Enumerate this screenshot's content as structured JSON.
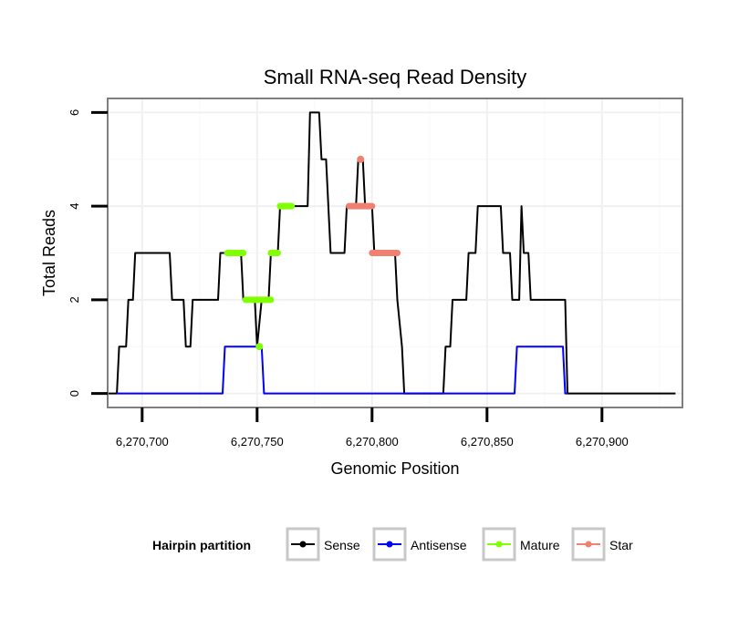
{
  "chart_data": {
    "type": "line",
    "title": "Small RNA-seq Read Density",
    "xlabel": "Genomic Position",
    "ylabel": "Total Reads",
    "xlim": [
      6270685,
      6270935
    ],
    "ylim": [
      -0.3,
      6.3
    ],
    "xticks": [
      6270700,
      6270750,
      6270800,
      6270850,
      6270900
    ],
    "xtick_labels": [
      "6,270,700",
      "6,270,750",
      "6,270,800",
      "6,270,850",
      "6,270,900"
    ],
    "yticks": [
      0,
      2,
      4,
      6
    ],
    "ytick_labels": [
      "0",
      "2",
      "4",
      "6"
    ],
    "grid": true,
    "legend_position": "bottom",
    "legend_title": "Hairpin partition",
    "series": [
      {
        "name": "Sense",
        "color": "#000000",
        "points": [
          [
            6270684,
            0
          ],
          [
            6270689,
            0
          ],
          [
            6270690,
            1
          ],
          [
            6270693,
            1
          ],
          [
            6270694,
            2
          ],
          [
            6270696,
            2
          ],
          [
            6270697,
            3
          ],
          [
            6270712,
            3
          ],
          [
            6270713,
            2
          ],
          [
            6270718,
            2
          ],
          [
            6270719,
            1
          ],
          [
            6270721,
            1
          ],
          [
            6270722,
            2
          ],
          [
            6270733,
            2
          ],
          [
            6270734,
            3
          ],
          [
            6270743,
            3
          ],
          [
            6270744,
            2
          ],
          [
            6270749,
            2
          ],
          [
            6270750,
            1
          ],
          [
            6270752,
            2
          ],
          [
            6270755,
            2
          ],
          [
            6270756,
            3
          ],
          [
            6270759,
            3
          ],
          [
            6270760,
            4
          ],
          [
            6270772,
            4
          ],
          [
            6270773,
            6
          ],
          [
            6270777,
            6
          ],
          [
            6270778,
            5
          ],
          [
            6270780,
            5
          ],
          [
            6270782,
            3
          ],
          [
            6270788,
            3
          ],
          [
            6270789,
            4
          ],
          [
            6270793,
            4
          ],
          [
            6270794,
            5
          ],
          [
            6270796,
            5
          ],
          [
            6270797,
            4
          ],
          [
            6270800,
            4
          ],
          [
            6270801,
            3
          ],
          [
            6270810,
            3
          ],
          [
            6270811,
            2
          ],
          [
            6270813,
            1
          ],
          [
            6270814,
            0
          ],
          [
            6270831,
            0
          ],
          [
            6270832,
            1
          ],
          [
            6270834,
            1
          ],
          [
            6270835,
            2
          ],
          [
            6270841,
            2
          ],
          [
            6270842,
            3
          ],
          [
            6270845,
            3
          ],
          [
            6270846,
            4
          ],
          [
            6270856,
            4
          ],
          [
            6270857,
            3
          ],
          [
            6270860,
            3
          ],
          [
            6270861,
            2
          ],
          [
            6270864,
            2
          ],
          [
            6270865,
            4
          ],
          [
            6270866,
            3
          ],
          [
            6270868,
            3
          ],
          [
            6270869,
            2
          ],
          [
            6270884,
            2
          ],
          [
            6270885,
            0
          ],
          [
            6270932,
            0
          ]
        ]
      },
      {
        "name": "Antisense",
        "color": "#0000ff",
        "points": [
          [
            6270689,
            0
          ],
          [
            6270735,
            0
          ],
          [
            6270736,
            1
          ],
          [
            6270752,
            1
          ],
          [
            6270753,
            0
          ],
          [
            6270862,
            0
          ],
          [
            6270863,
            1
          ],
          [
            6270883,
            1
          ],
          [
            6270884,
            0
          ],
          [
            6270885,
            0
          ]
        ]
      },
      {
        "name": "Mature",
        "color": "#7fff00",
        "segments": [
          {
            "x": [
              6270737,
              6270744
            ],
            "y": 3
          },
          {
            "x": [
              6270745,
              6270756
            ],
            "y": 2
          },
          {
            "x": [
              6270756,
              6270759
            ],
            "y": 3
          },
          {
            "x": [
              6270760,
              6270765
            ],
            "y": 4
          }
        ],
        "points": [
          [
            6270751,
            1
          ]
        ]
      },
      {
        "name": "Star",
        "color": "#f08070",
        "segments": [
          {
            "x": [
              6270790,
              6270800
            ],
            "y": 4
          },
          {
            "x": [
              6270800,
              6270811
            ],
            "y": 3
          }
        ],
        "points": [
          [
            6270795,
            5
          ]
        ]
      }
    ]
  }
}
